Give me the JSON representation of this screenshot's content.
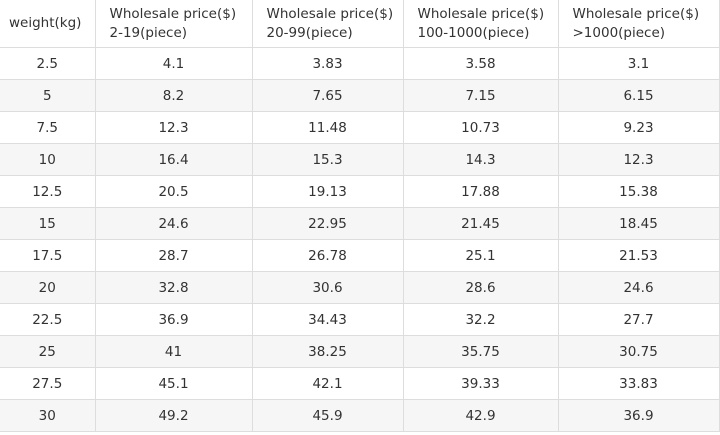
{
  "table": {
    "header": [
      [
        "weight(kg)"
      ],
      [
        "Wholesale price($)",
        "2-19(piece)"
      ],
      [
        "Wholesale price($)",
        "20-99(piece)"
      ],
      [
        "Wholesale price($)",
        "100-1000(piece)"
      ],
      [
        "Wholesale price($)",
        ">1000(piece)"
      ]
    ],
    "rows": [
      [
        "2.5",
        "4.1",
        "3.83",
        "3.58",
        "3.1"
      ],
      [
        "5",
        "8.2",
        "7.65",
        "7.15",
        "6.15"
      ],
      [
        "7.5",
        "12.3",
        "11.48",
        "10.73",
        "9.23"
      ],
      [
        "10",
        "16.4",
        "15.3",
        "14.3",
        "12.3"
      ],
      [
        "12.5",
        "20.5",
        "19.13",
        "17.88",
        "15.38"
      ],
      [
        "15",
        "24.6",
        "22.95",
        "21.45",
        "18.45"
      ],
      [
        "17.5",
        "28.7",
        "26.78",
        "25.1",
        "21.53"
      ],
      [
        "20",
        "32.8",
        "30.6",
        "28.6",
        "24.6"
      ],
      [
        "22.5",
        "36.9",
        "34.43",
        "32.2",
        "27.7"
      ],
      [
        "25",
        "41",
        "38.25",
        "35.75",
        "30.75"
      ],
      [
        "27.5",
        "45.1",
        "42.1",
        "39.33",
        "33.83"
      ],
      [
        "30",
        "49.2",
        "45.9",
        "42.9",
        "36.9"
      ]
    ]
  }
}
